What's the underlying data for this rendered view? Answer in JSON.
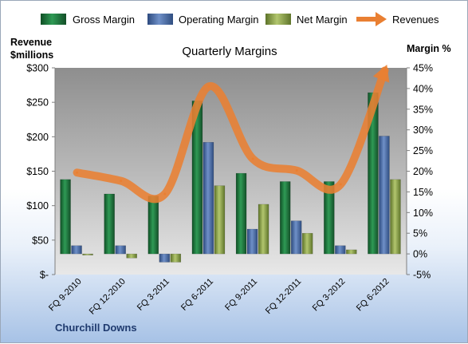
{
  "chart_data": {
    "type": "bar",
    "title": "Quarterly Margins",
    "categories": [
      "FQ 9-2010",
      "FQ 12-2010",
      "FQ 3-2011",
      "FQ 6-2011",
      "FQ 9-2011",
      "FQ 12-2011",
      "FQ 3-2012",
      "FQ 6-2012"
    ],
    "series": [
      {
        "name": "Gross Margin",
        "type": "bar",
        "axis": "right",
        "values": [
          18,
          14.5,
          14,
          37,
          19.5,
          17.5,
          17.5,
          39
        ],
        "color": "#1f7a3f"
      },
      {
        "name": "Operating Margin",
        "type": "bar",
        "axis": "right",
        "values": [
          2,
          2,
          -2,
          27,
          6,
          8,
          2,
          28.5
        ],
        "color": "#4a6ea9"
      },
      {
        "name": "Net Margin",
        "type": "bar",
        "axis": "right",
        "values": [
          -0.3,
          -1,
          -2,
          16.5,
          12,
          5,
          1,
          18
        ],
        "color": "#8ea54a"
      },
      {
        "name": "Revenues",
        "type": "line",
        "axis": "left",
        "values": [
          148,
          136,
          117,
          273,
          168,
          151,
          131,
          296
        ],
        "color": "#e97f32"
      }
    ],
    "ylabel_left": "Revenue $millions",
    "ylabel_right": "Margin %",
    "ylim_left": [
      0,
      300
    ],
    "ylim_right": [
      -5,
      45
    ],
    "yticks_left": [
      "$-",
      "$50",
      "$100",
      "$150",
      "$200",
      "$250",
      "$300"
    ],
    "yticks_right": [
      "-5%",
      "0%",
      "5%",
      "10%",
      "15%",
      "20%",
      "25%",
      "30%",
      "35%",
      "40%",
      "45%"
    ],
    "annotation": "Churchill Downs",
    "legend": "top",
    "grid": false
  }
}
